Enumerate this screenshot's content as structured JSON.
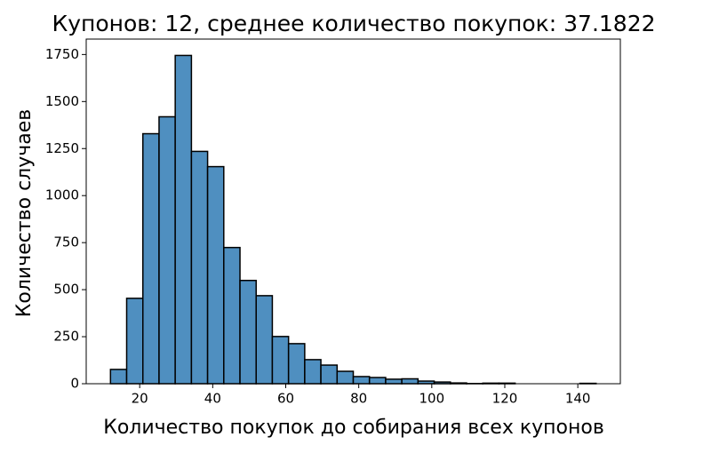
{
  "chart_data": {
    "type": "histogram",
    "title": "Купонов: 12, среднее количество покупок: 37.1822",
    "x_label": "Количество покупок до собирания всех купонов",
    "y_label": "Количество случаев",
    "bins": [
      12,
      16.43,
      20.87,
      25.3,
      29.73,
      34.17,
      38.6,
      43.03,
      47.47,
      51.9,
      56.33,
      60.77,
      65.2,
      69.63,
      74.07,
      78.5,
      82.93,
      87.37,
      91.8,
      96.23,
      100.67,
      105.1,
      109.53,
      113.97,
      118.4,
      122.83,
      127.27,
      131.7,
      136.13,
      140.57,
      145
    ],
    "values": [
      76,
      454,
      1329,
      1419,
      1745,
      1235,
      1154,
      724,
      549,
      468,
      251,
      213,
      128,
      99,
      66,
      38,
      33,
      24,
      26,
      14,
      9,
      4,
      1,
      3,
      3,
      0,
      0,
      0,
      0,
      2
    ],
    "color": "#4f8fc0",
    "xlim": [
      5.35,
      151.65
    ],
    "ylim": [
      0,
      1832
    ],
    "xticks": [
      20,
      40,
      60,
      80,
      100,
      120,
      140
    ],
    "yticks": [
      0,
      250,
      500,
      750,
      1000,
      1250,
      1500,
      1750
    ]
  }
}
